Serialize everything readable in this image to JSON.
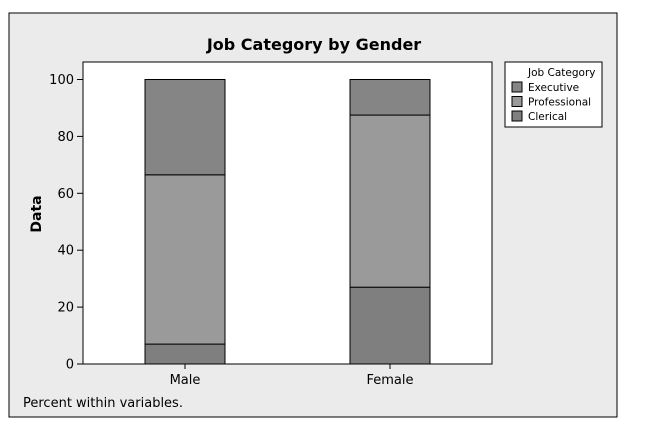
{
  "chart_data": {
    "type": "bar",
    "stacked": true,
    "title": "Job Category by Gender",
    "xlabel": "",
    "ylabel": "Data",
    "ylim": [
      0,
      100
    ],
    "yticks": [
      0,
      20,
      40,
      60,
      80,
      100
    ],
    "categories": [
      "Male",
      "Female"
    ],
    "legend_title": "Job Category",
    "legend_position": "right",
    "grid": false,
    "series": [
      {
        "name": "Clerical",
        "values": [
          7,
          27
        ],
        "color": "#7f7f7f"
      },
      {
        "name": "Professional",
        "values": [
          59.5,
          60.5
        ],
        "color": "#9a9a9a"
      },
      {
        "name": "Executive",
        "values": [
          33.5,
          12.5
        ],
        "color": "#858585"
      }
    ],
    "legend_order": [
      "Executive",
      "Professional",
      "Clerical"
    ],
    "footnote": "Percent within variables."
  },
  "colors": {
    "background": "#ebebeb",
    "plot_background": "#ffffff",
    "border": "#000000"
  }
}
